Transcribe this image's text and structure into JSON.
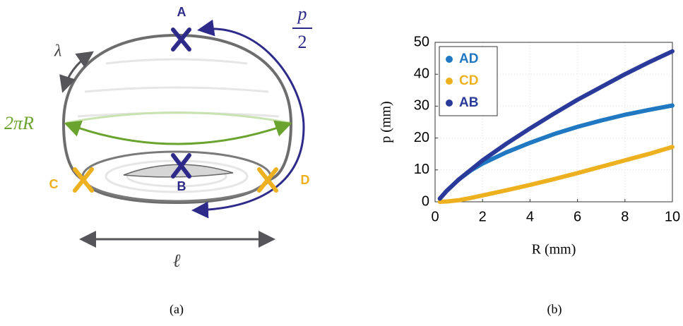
{
  "diagram": {
    "point_a": "A",
    "point_b": "B",
    "point_c": "C",
    "point_d": "D",
    "lambda": "λ",
    "circumference": "2πR",
    "half_p_numerator": "p",
    "half_p_denominator": "2",
    "length": "ℓ"
  },
  "captions": [
    "(a)",
    "(b)"
  ],
  "chart_data": {
    "type": "line",
    "x_label": "R (mm)",
    "y_label": "p (mm)",
    "x": [
      0.2,
      0.5,
      1,
      1.5,
      2,
      3,
      4,
      5,
      6,
      7,
      8,
      9,
      10
    ],
    "series": [
      {
        "name": "AD",
        "color": "#1f78c1",
        "values": [
          1,
          3.5,
          7,
          9.8,
          12,
          15.5,
          18.5,
          21.2,
          23.5,
          25.5,
          27.3,
          28.8,
          30.2
        ]
      },
      {
        "name": "CD",
        "color": "#edb120",
        "values": [
          0,
          0.1,
          0.5,
          1.2,
          2,
          3.6,
          5.3,
          7.1,
          9,
          11,
          13,
          15,
          17.2
        ]
      },
      {
        "name": "AB",
        "color": "#2a3a9a",
        "values": [
          1,
          3.5,
          7,
          10,
          13,
          18.2,
          23,
          27.6,
          32,
          36,
          40,
          43.7,
          47.2
        ]
      }
    ],
    "xlim": [
      0,
      10
    ],
    "xticks": [
      0,
      2,
      4,
      6,
      8,
      10
    ],
    "ylim": [
      0,
      50
    ],
    "yticks": [
      0,
      10,
      20,
      30,
      40,
      50
    ],
    "grid": true,
    "legend": "top-left"
  }
}
